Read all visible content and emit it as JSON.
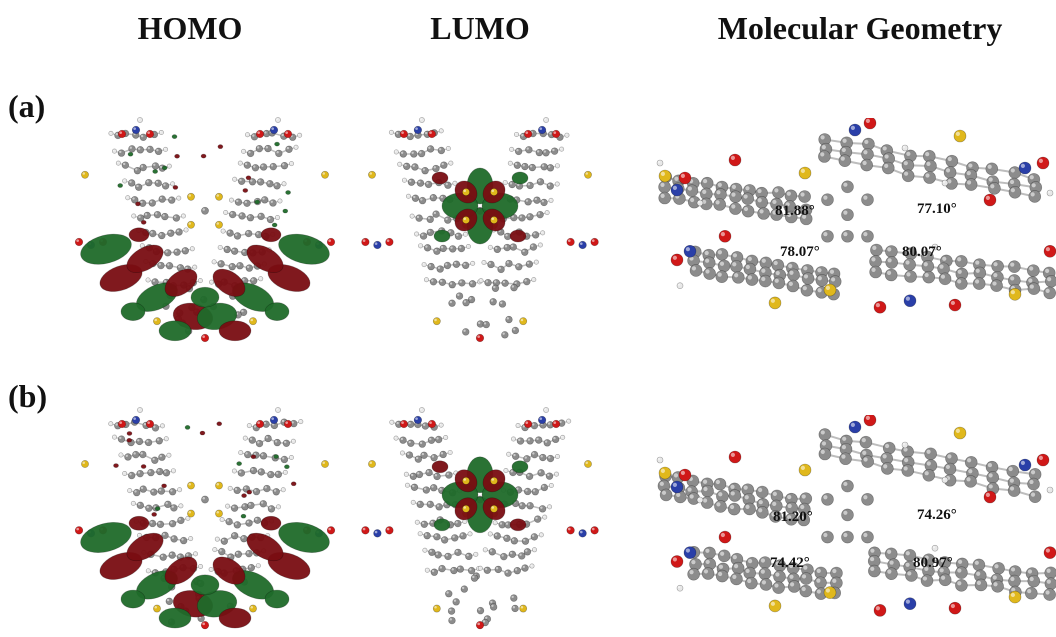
{
  "columns": {
    "homo": "HOMO",
    "lumo": "LUMO",
    "geometry": "Molecular Geometry"
  },
  "rows": [
    {
      "label": "(a)",
      "angles": [
        "81.88°",
        "77.10°",
        "78.07°",
        "80.07°"
      ]
    },
    {
      "label": "(b)",
      "angles": [
        "81.20°",
        "74.26°",
        "74.42°",
        "80.97°"
      ]
    }
  ],
  "colors": {
    "orbital_positive": "#7a0d12",
    "orbital_negative": "#1f6b2a",
    "carbon": "#8c8c8c",
    "hydrogen": "#e8e8e8",
    "oxygen": "#d01818",
    "nitrogen": "#2a3fa8",
    "sulfur": "#e0b81c"
  }
}
